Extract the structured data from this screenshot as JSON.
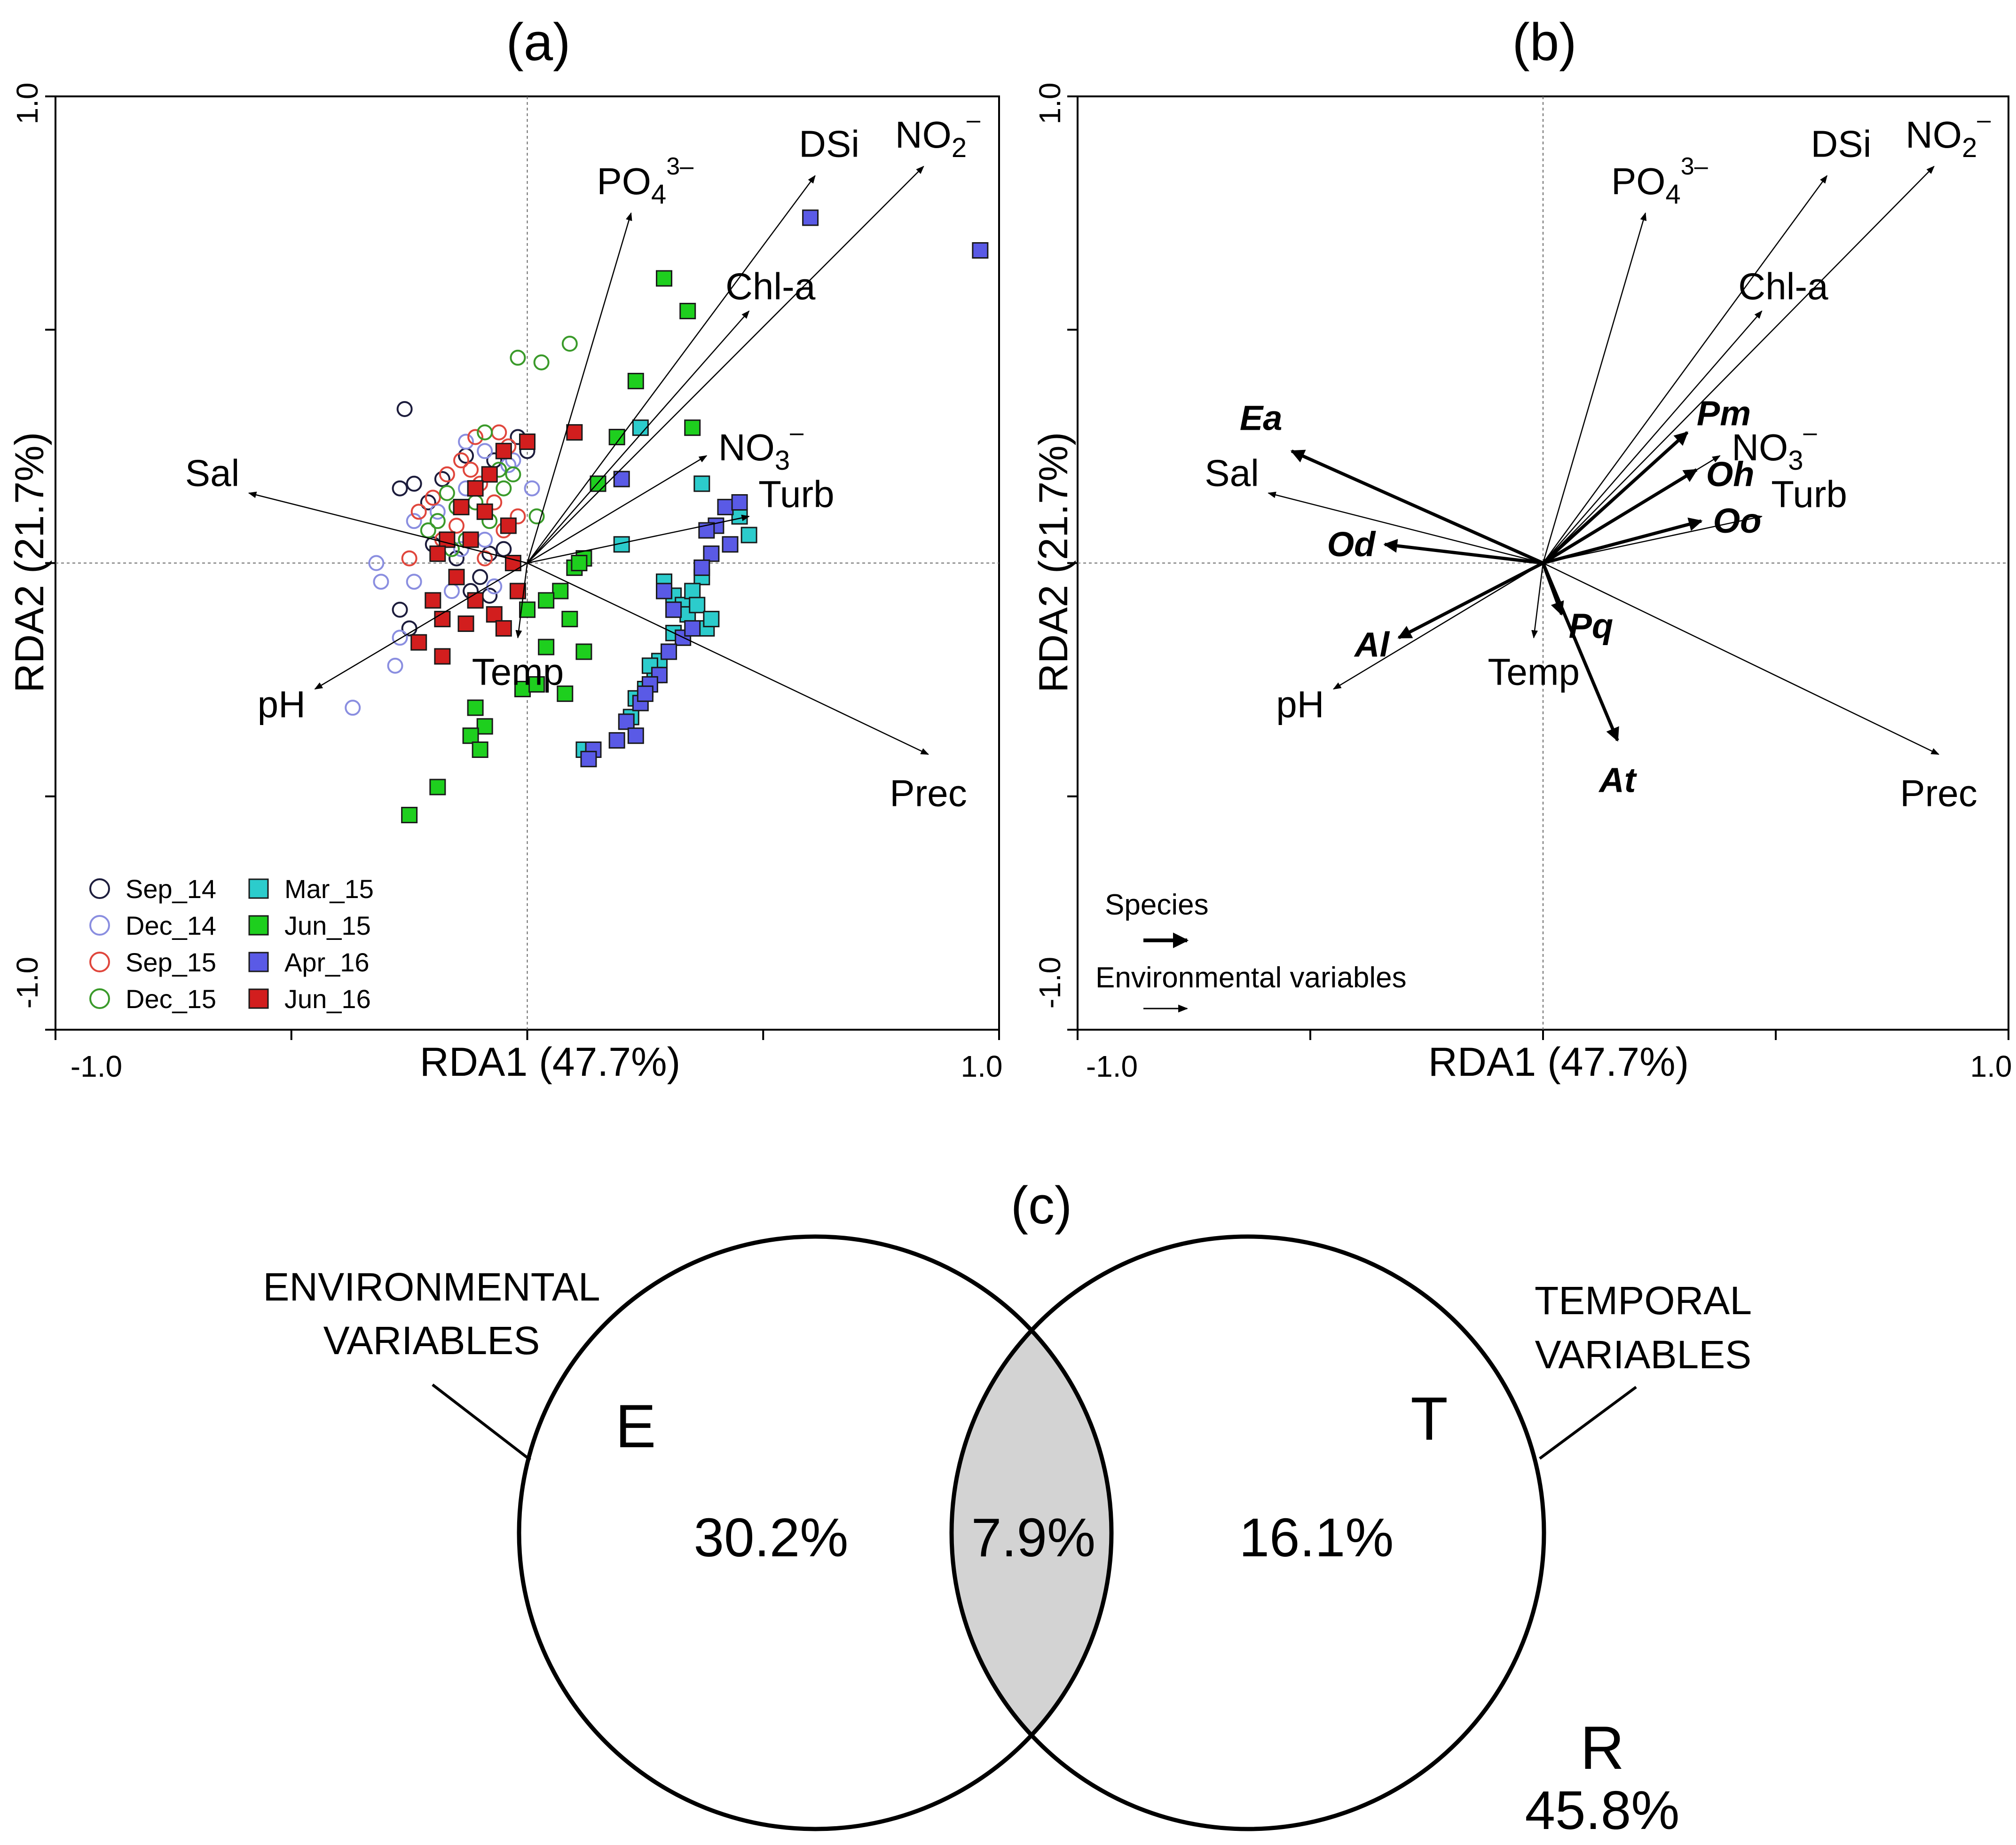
{
  "chart_data": [
    {
      "type": "scatter",
      "subtype": "rda-triplot-samples",
      "panel": "(a)",
      "xlabel": "RDA1 (47.7%)",
      "ylabel": "RDA2 (21.7%)",
      "xlim": [
        -1.0,
        1.0
      ],
      "ylim": [
        -1.0,
        1.0
      ],
      "xtick_labels": [
        "-1.0",
        "1.0"
      ],
      "ytick_labels": [
        "1.0",
        "-1.0"
      ],
      "env_vectors": [
        {
          "name": "PO4",
          "sub": "4",
          "sup": "3–",
          "x": 0.22,
          "y": 0.75
        },
        {
          "name": "DSi",
          "x": 0.61,
          "y": 0.83
        },
        {
          "name": "NO2",
          "sub": "2",
          "sup": "–",
          "x": 0.84,
          "y": 0.85
        },
        {
          "name": "Chl-a",
          "x": 0.47,
          "y": 0.54
        },
        {
          "name": "NO3",
          "sub": "3",
          "sup": "–",
          "x": 0.38,
          "y": 0.23
        },
        {
          "name": "Turb",
          "x": 0.47,
          "y": 0.1
        },
        {
          "name": "Sal",
          "x": -0.59,
          "y": 0.15
        },
        {
          "name": "pH",
          "x": -0.45,
          "y": -0.27
        },
        {
          "name": "Temp",
          "x": -0.02,
          "y": -0.16
        },
        {
          "name": "Prec",
          "x": 0.85,
          "y": -0.41
        }
      ],
      "env_label_text": {
        "PO4": "PO",
        "DSi": "DSi",
        "NO2": "NO",
        "Chl-a": "Chl-a",
        "NO3": "NO",
        "Turb": "Turb",
        "Sal": "Sal",
        "pH": "pH",
        "Temp": "Temp",
        "Prec": "Prec"
      },
      "legend": [
        {
          "label": "Sep_14",
          "marker": "circle",
          "color": "#1c1c3c"
        },
        {
          "label": "Dec_14",
          "marker": "circle",
          "color": "#8a8ee0"
        },
        {
          "label": "Sep_15",
          "marker": "circle",
          "color": "#e0463c"
        },
        {
          "label": "Dec_15",
          "marker": "circle",
          "color": "#3a9a2a"
        },
        {
          "label": "Mar_15",
          "marker": "square",
          "color": "#2ccccc"
        },
        {
          "label": "Jun_15",
          "marker": "square",
          "color": "#1ecf1e"
        },
        {
          "label": "Apr_16",
          "marker": "square",
          "color": "#5a5ae6"
        },
        {
          "label": "Jun_16",
          "marker": "square",
          "color": "#d21e1e"
        }
      ],
      "series": [
        {
          "name": "Sep_14",
          "points": [
            [
              -0.26,
              0.33
            ],
            [
              -0.27,
              0.16
            ],
            [
              -0.24,
              0.17
            ],
            [
              -0.21,
              0.13
            ],
            [
              -0.18,
              0.18
            ],
            [
              -0.13,
              0.23
            ],
            [
              -0.07,
              0.22
            ],
            [
              -0.02,
              0.27
            ],
            [
              0.0,
              0.24
            ],
            [
              -0.05,
              0.03
            ],
            [
              -0.08,
              0.02
            ],
            [
              -0.12,
              -0.06
            ],
            [
              -0.15,
              0.01
            ],
            [
              -0.27,
              -0.1
            ],
            [
              -0.25,
              -0.14
            ],
            [
              -0.08,
              -0.07
            ],
            [
              -0.1,
              -0.03
            ],
            [
              -0.2,
              0.04
            ]
          ]
        },
        {
          "name": "Dec_14",
          "points": [
            [
              -0.37,
              -0.31
            ],
            [
              -0.28,
              -0.22
            ],
            [
              -0.27,
              -0.16
            ],
            [
              -0.31,
              -0.04
            ],
            [
              -0.24,
              -0.04
            ],
            [
              -0.32,
              0.0
            ],
            [
              -0.24,
              0.09
            ],
            [
              -0.19,
              0.11
            ],
            [
              -0.14,
              0.03
            ],
            [
              -0.09,
              0.05
            ],
            [
              -0.13,
              0.16
            ],
            [
              -0.13,
              0.26
            ],
            [
              -0.09,
              0.24
            ],
            [
              -0.03,
              0.22
            ],
            [
              0.01,
              0.16
            ],
            [
              -0.04,
              0.21
            ],
            [
              -0.16,
              -0.06
            ],
            [
              -0.07,
              -0.05
            ]
          ]
        },
        {
          "name": "Sep_15",
          "points": [
            [
              -0.25,
              0.01
            ],
            [
              -0.23,
              0.11
            ],
            [
              -0.2,
              0.14
            ],
            [
              -0.17,
              0.19
            ],
            [
              -0.14,
              0.22
            ],
            [
              -0.06,
              0.28
            ],
            [
              -0.04,
              0.25
            ],
            [
              -0.12,
              0.2
            ],
            [
              -0.1,
              0.17
            ],
            [
              -0.07,
              0.13
            ],
            [
              -0.15,
              0.08
            ],
            [
              -0.18,
              0.05
            ],
            [
              -0.05,
              0.07
            ],
            [
              -0.09,
              0.01
            ],
            [
              -0.02,
              0.1
            ],
            [
              -0.11,
              0.27
            ]
          ]
        },
        {
          "name": "Dec_15",
          "points": [
            [
              -0.02,
              0.44
            ],
            [
              0.03,
              0.43
            ],
            [
              0.09,
              0.47
            ],
            [
              -0.15,
              0.12
            ],
            [
              -0.19,
              0.09
            ],
            [
              -0.13,
              0.05
            ],
            [
              -0.03,
              0.19
            ],
            [
              -0.09,
              0.28
            ],
            [
              -0.06,
              0.2
            ],
            [
              -0.11,
              0.13
            ],
            [
              -0.08,
              0.09
            ],
            [
              -0.17,
              0.15
            ],
            [
              -0.21,
              0.07
            ],
            [
              -0.05,
              0.16
            ],
            [
              0.02,
              0.1
            ],
            [
              -0.16,
              0.03
            ]
          ]
        },
        {
          "name": "Mar_15",
          "points": [
            [
              0.24,
              0.29
            ],
            [
              0.2,
              0.04
            ],
            [
              0.29,
              -0.04
            ],
            [
              0.31,
              -0.07
            ],
            [
              0.33,
              -0.09
            ],
            [
              0.34,
              -0.11
            ],
            [
              0.37,
              -0.03
            ],
            [
              0.35,
              -0.06
            ],
            [
              0.38,
              -0.14
            ],
            [
              0.31,
              -0.15
            ],
            [
              0.28,
              -0.21
            ],
            [
              0.27,
              -0.24
            ],
            [
              0.25,
              -0.27
            ],
            [
              0.23,
              -0.29
            ],
            [
              0.26,
              -0.22
            ],
            [
              0.22,
              -0.33
            ],
            [
              0.12,
              -0.4
            ],
            [
              0.36,
              -0.09
            ],
            [
              0.45,
              0.1
            ],
            [
              0.47,
              0.06
            ],
            [
              0.37,
              0.17
            ],
            [
              0.39,
              -0.12
            ]
          ]
        },
        {
          "name": "Jun_15",
          "points": [
            [
              0.29,
              0.61
            ],
            [
              0.34,
              0.54
            ],
            [
              0.23,
              0.39
            ],
            [
              0.35,
              0.29
            ],
            [
              0.19,
              0.27
            ],
            [
              0.12,
              0.01
            ],
            [
              0.1,
              -0.01
            ],
            [
              0.07,
              -0.06
            ],
            [
              0.04,
              -0.08
            ],
            [
              0.09,
              -0.12
            ],
            [
              0.12,
              -0.19
            ],
            [
              0.04,
              -0.18
            ],
            [
              0.08,
              -0.28
            ],
            [
              -0.01,
              -0.27
            ],
            [
              -0.11,
              -0.31
            ],
            [
              -0.09,
              -0.35
            ],
            [
              -0.12,
              -0.37
            ],
            [
              -0.1,
              -0.4
            ],
            [
              -0.19,
              -0.48
            ],
            [
              -0.25,
              -0.54
            ],
            [
              0.15,
              0.17
            ],
            [
              0.02,
              -0.26
            ],
            [
              0.11,
              0.0
            ],
            [
              0.0,
              -0.1
            ]
          ]
        },
        {
          "name": "Apr_16",
          "points": [
            [
              0.6,
              0.74
            ],
            [
              0.96,
              0.67
            ],
            [
              0.42,
              0.12
            ],
            [
              0.4,
              0.08
            ],
            [
              0.38,
              0.07
            ],
            [
              0.45,
              0.13
            ],
            [
              0.43,
              0.04
            ],
            [
              0.39,
              0.02
            ],
            [
              0.29,
              -0.06
            ],
            [
              0.31,
              -0.1
            ],
            [
              0.33,
              -0.16
            ],
            [
              0.3,
              -0.19
            ],
            [
              0.28,
              -0.24
            ],
            [
              0.26,
              -0.26
            ],
            [
              0.24,
              -0.3
            ],
            [
              0.21,
              -0.34
            ],
            [
              0.23,
              -0.37
            ],
            [
              0.14,
              -0.4
            ],
            [
              0.13,
              -0.42
            ],
            [
              0.2,
              0.18
            ],
            [
              0.37,
              -0.01
            ],
            [
              0.35,
              -0.14
            ],
            [
              0.25,
              -0.28
            ],
            [
              0.19,
              -0.38
            ]
          ]
        },
        {
          "name": "Jun_16",
          "points": [
            [
              0.1,
              0.28
            ],
            [
              0.0,
              0.26
            ],
            [
              -0.05,
              0.24
            ],
            [
              -0.08,
              0.19
            ],
            [
              -0.11,
              0.16
            ],
            [
              -0.14,
              0.12
            ],
            [
              -0.09,
              0.11
            ],
            [
              -0.04,
              0.08
            ],
            [
              -0.17,
              0.05
            ],
            [
              -0.19,
              0.02
            ],
            [
              -0.15,
              -0.03
            ],
            [
              -0.11,
              -0.08
            ],
            [
              -0.07,
              -0.11
            ],
            [
              -0.13,
              -0.13
            ],
            [
              -0.18,
              -0.12
            ],
            [
              -0.23,
              -0.17
            ],
            [
              -0.18,
              -0.2
            ],
            [
              -0.05,
              -0.14
            ],
            [
              -0.02,
              -0.06
            ],
            [
              -0.03,
              0.0
            ],
            [
              -0.12,
              0.05
            ],
            [
              -0.2,
              -0.08
            ]
          ]
        }
      ]
    },
    {
      "type": "scatter",
      "subtype": "rda-biplot-species",
      "panel": "(b)",
      "xlabel": "RDA1 (47.7%)",
      "ylabel": "RDA2 (21.7%)",
      "xlim": [
        -1.0,
        1.0
      ],
      "ylim": [
        -1.0,
        1.0
      ],
      "xtick_labels": [
        "-1.0",
        "1.0"
      ],
      "ytick_labels": [
        "1.0",
        "-1.0"
      ],
      "species_vectors": [
        {
          "name": "Ea",
          "x": -0.54,
          "y": 0.24
        },
        {
          "name": "Od",
          "x": -0.34,
          "y": 0.04
        },
        {
          "name": "Al",
          "x": -0.31,
          "y": -0.16
        },
        {
          "name": "Pm",
          "x": 0.31,
          "y": 0.28
        },
        {
          "name": "Oh",
          "x": 0.33,
          "y": 0.2
        },
        {
          "name": "Oo",
          "x": 0.34,
          "y": 0.09
        },
        {
          "name": "Pq",
          "x": 0.04,
          "y": -0.11
        },
        {
          "name": "At",
          "x": 0.16,
          "y": -0.38
        }
      ],
      "env_vectors": [
        {
          "name": "PO4",
          "sub": "4",
          "sup": "3–",
          "x": 0.22,
          "y": 0.75
        },
        {
          "name": "DSi",
          "x": 0.61,
          "y": 0.83
        },
        {
          "name": "NO2",
          "sub": "2",
          "sup": "–",
          "x": 0.84,
          "y": 0.85
        },
        {
          "name": "Chl-a",
          "x": 0.47,
          "y": 0.54
        },
        {
          "name": "NO3",
          "sub": "3",
          "sup": "–",
          "x": 0.38,
          "y": 0.23
        },
        {
          "name": "Turb",
          "x": 0.47,
          "y": 0.1
        },
        {
          "name": "Sal",
          "x": -0.59,
          "y": 0.15
        },
        {
          "name": "pH",
          "x": -0.45,
          "y": -0.27
        },
        {
          "name": "Temp",
          "x": -0.02,
          "y": -0.16
        },
        {
          "name": "Prec",
          "x": 0.85,
          "y": -0.41
        }
      ],
      "env_label_text": {
        "PO4": "PO",
        "DSi": "DSi",
        "NO2": "NO",
        "Chl-a": "Chl-a",
        "NO3": "NO",
        "Turb": "Turb",
        "Sal": "Sal",
        "pH": "pH",
        "Temp": "Temp",
        "Prec": "Prec"
      },
      "key": {
        "species": "Species",
        "env": "Environmental variables"
      }
    },
    {
      "type": "venn",
      "panel": "(c)",
      "sets": [
        {
          "letter": "E",
          "label_line1": "ENVIRONMENTAL",
          "label_line2": "VARIABLES",
          "unique": "30.2%"
        },
        {
          "letter": "T",
          "label_line1": "TEMPORAL",
          "label_line2": "VARIABLES",
          "unique": "16.1%"
        }
      ],
      "shared": "7.9%",
      "residual": {
        "letter": "R",
        "value": "45.8%"
      },
      "shared_color": "#d3d3d3"
    }
  ]
}
